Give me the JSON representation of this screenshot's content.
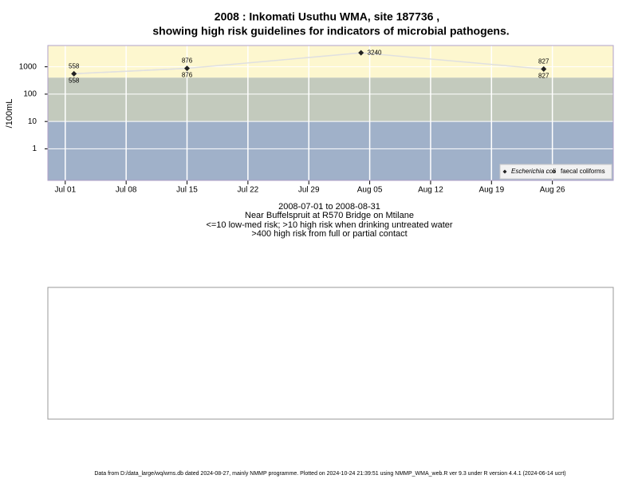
{
  "chart_data": {
    "type": "line",
    "title": "2008 : Inkomati Usuthu WMA, site 187736 ,",
    "subtitle": "showing high risk guidelines for indicators of microbial pathogens.",
    "y_label": "/100mL",
    "x_caption": [
      "2008-07-01 to 2008-08-31",
      "Near Buffelspruit at R570 Bridge on Mtilane",
      "<=10 low-med risk; >10 high risk when drinking untreated water",
      ">400 high risk from full or partial contact"
    ],
    "footer": "Data from D:/data_large/wq/wms.db dated 2024-08-27, mainly NMMP programme. Plotted on 2024-10-24 21:39:51 using NMMP_WMA_web.R ver 9.3 under R version 4.4.1 (2024-06-14 ucrt)",
    "x": [
      "2008-07-02",
      "2008-07-15",
      "2008-08-04",
      "2008-08-25"
    ],
    "series": [
      {
        "name": "Escherichia coli",
        "color": "#222222",
        "values": [
          558,
          876,
          3240,
          827
        ]
      },
      {
        "name": "faecal coliforms",
        "color": "#222222",
        "values": [
          558,
          876,
          null,
          827
        ]
      }
    ],
    "line_color": "#e0e0e0",
    "risk_bands": [
      {
        "from": 400,
        "color": "#fdf7cf"
      },
      {
        "from": 10,
        "color": "#c3cabd"
      },
      {
        "from": null,
        "color": "#a0b1c9"
      }
    ],
    "log_y": true,
    "ylim": [
      0.07,
      6000
    ],
    "yticks": [
      1,
      10,
      100,
      1000
    ],
    "xlim": [
      "2008-06-29",
      "2008-09-02"
    ],
    "xticks": [
      {
        "value": "2008-07-01",
        "label": "Jul 01"
      },
      {
        "value": "2008-07-08",
        "label": "Jul 08"
      },
      {
        "value": "2008-07-15",
        "label": "Jul 15"
      },
      {
        "value": "2008-07-22",
        "label": "Jul 22"
      },
      {
        "value": "2008-07-29",
        "label": "Jul 29"
      },
      {
        "value": "2008-08-05",
        "label": "Aug 05"
      },
      {
        "value": "2008-08-12",
        "label": "Aug 12"
      },
      {
        "value": "2008-08-19",
        "label": "Aug 19"
      },
      {
        "value": "2008-08-26",
        "label": "Aug 26"
      }
    ],
    "grid": true,
    "legend": "bottom-right"
  }
}
